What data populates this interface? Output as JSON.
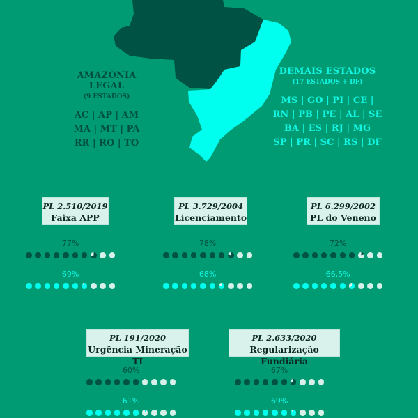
{
  "colors": {
    "background": "#019b73",
    "amazonia": "#005245",
    "demais": "#00ffee",
    "empty": "#d8f0ea"
  },
  "regions": {
    "amazonia": {
      "title": "AMAZÔNIA LEGAL",
      "subtitle": "(9 ESTADOS)",
      "states": [
        "AC | AP | AM",
        "MA | MT | PA",
        "RR | RO | TO"
      ]
    },
    "demais": {
      "title": "DEMAIS ESTADOS",
      "subtitle": "(17 ESTADOS + DF)",
      "states": [
        "MS | GO | PI | CE |",
        "RN | PB | PE | AL | SE",
        "BA | ES | RJ | MG",
        "SP | PR | SC | RS | DF"
      ]
    }
  },
  "bills": [
    {
      "pl": "PL 2.510/2019",
      "name": "Faixa APP",
      "amazonia_label": "77%",
      "amazonia": 77,
      "demais_label": "69%",
      "demais": 69
    },
    {
      "pl": "PL 3.729/2004",
      "name": "Licenciamento",
      "amazonia_label": "78%",
      "amazonia": 78,
      "demais_label": "68%",
      "demais": 68
    },
    {
      "pl": "PL 6.299/2002",
      "name": "PL do Veneno",
      "amazonia_label": "72%",
      "amazonia": 72,
      "demais_label": "66,5%",
      "demais": 66.5
    },
    {
      "pl": "PL 191/2020",
      "name": "Urgência Mineração TI",
      "amazonia_label": "60%",
      "amazonia": 60,
      "demais_label": "61%",
      "demais": 61
    },
    {
      "pl": "PL 2.633/2020",
      "name": "Regularização Fundiária",
      "amazonia_label": "67%",
      "amazonia": 67,
      "demais_label": "69%",
      "demais": 69
    }
  ]
}
